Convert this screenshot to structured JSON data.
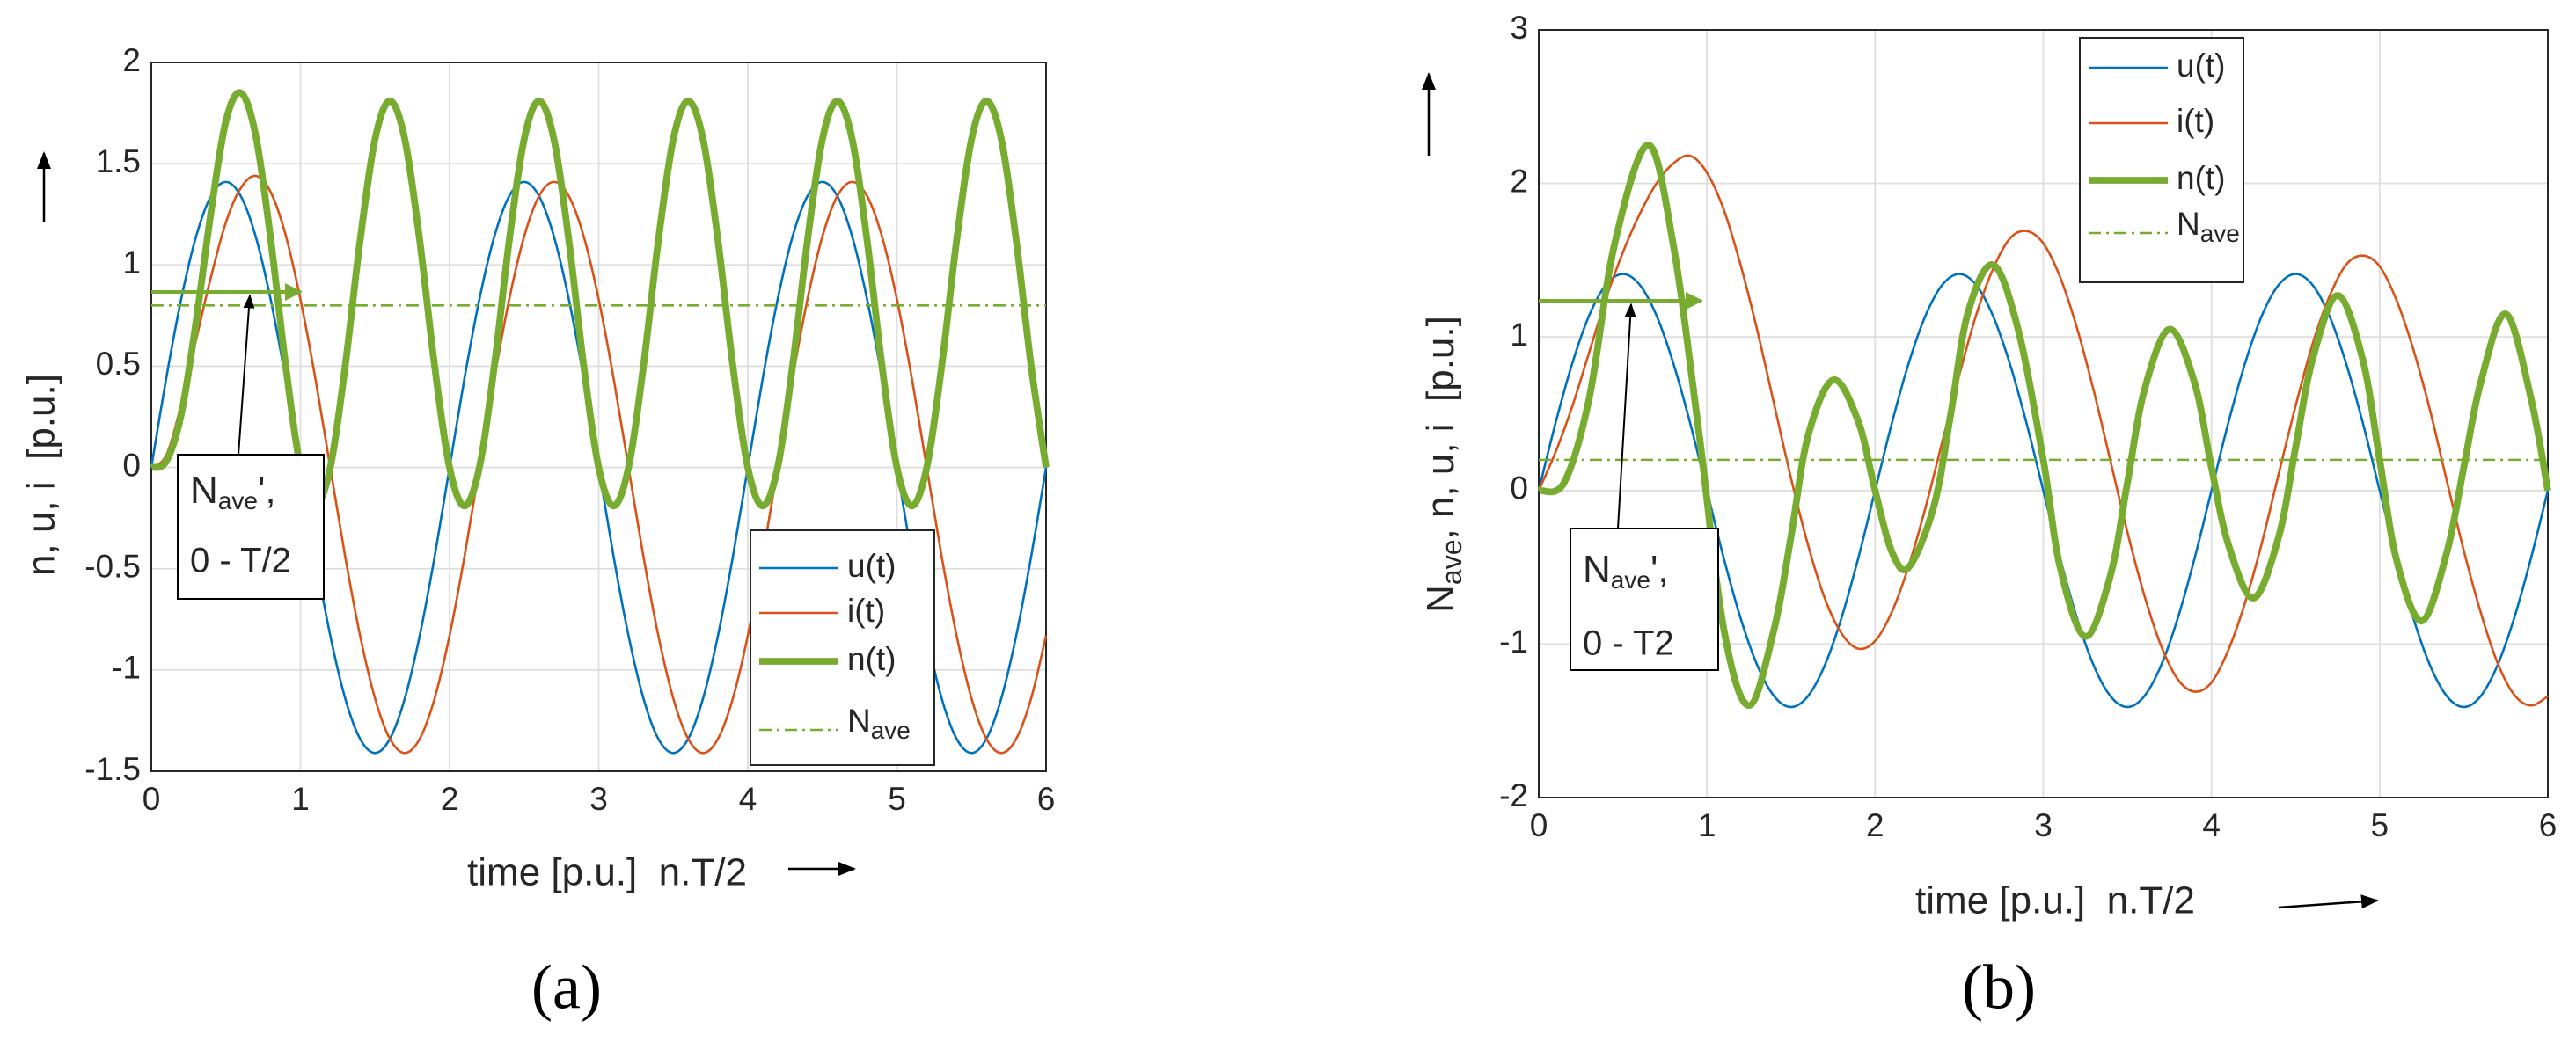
{
  "chart_data": [
    {
      "type": "line",
      "panel_label": "(a)",
      "xlabel": "time [p.u.]  n.T/2",
      "ylabel": "n, u, i  [p.u.]",
      "xlim": [
        0,
        6
      ],
      "xticks": [
        0,
        1,
        2,
        3,
        4,
        5,
        6
      ],
      "ylim": [
        -1.5,
        2
      ],
      "yticks": [
        -1.5,
        -1,
        -0.5,
        0,
        0.5,
        1,
        1.5,
        2
      ],
      "grid": true,
      "legend": "lower right",
      "annotation": {
        "text": "N",
        "sub": "ave",
        "suffix": "',",
        "line2": "0 - T/2"
      },
      "x": [
        0,
        0.1,
        0.2,
        0.3,
        0.4,
        0.5,
        0.6,
        0.7,
        0.8,
        0.9,
        1,
        1.1,
        1.2,
        1.3,
        1.4,
        1.5,
        1.6,
        1.7,
        1.8,
        1.9,
        2,
        2.1,
        2.2,
        2.3,
        2.4,
        2.5,
        2.6,
        2.7,
        2.8,
        2.9,
        3,
        3.1,
        3.2,
        3.3,
        3.4,
        3.5,
        3.6,
        3.7,
        3.8,
        3.9,
        4,
        4.1,
        4.2,
        4.3,
        4.4,
        4.5,
        4.6,
        4.7,
        4.8,
        4.9,
        5,
        5.1,
        5.2,
        5.3,
        5.4,
        5.5,
        5.6,
        5.7,
        5.8,
        5.9,
        6
      ],
      "series": [
        {
          "name": "u(t)",
          "color": "#0072bd",
          "linewidth": 1,
          "linestyle": "solid",
          "values": [
            0,
            0.44,
            0.83,
            1.14,
            1.34,
            1.41,
            1.34,
            1.14,
            0.83,
            0.44,
            0,
            -0.44,
            -0.83,
            -1.14,
            -1.34,
            -1.41,
            -1.34,
            -1.14,
            -0.83,
            -0.44,
            0,
            0.44,
            0.83,
            1.14,
            1.34,
            1.41,
            1.34,
            1.14,
            0.83,
            0.44,
            0,
            -0.44,
            -0.83,
            -1.14,
            -1.34,
            -1.41,
            -1.34,
            -1.14,
            -0.83,
            -0.44,
            0,
            0.44,
            0.83,
            1.14,
            1.34,
            1.41,
            1.34,
            1.14,
            0.83,
            0.44,
            0,
            -0.44,
            -0.83,
            -1.14,
            -1.34,
            -1.41,
            -1.34,
            -1.14,
            -0.83,
            -0.44,
            0
          ]
        },
        {
          "name": "i(t)",
          "color": "#d95319",
          "linewidth": 1,
          "linestyle": "solid",
          "values": [
            0,
            0.06,
            0.31,
            0.63,
            0.94,
            1.21,
            1.38,
            1.44,
            1.36,
            1.15,
            0.83,
            0.44,
            0,
            -0.44,
            -0.83,
            -1.14,
            -1.34,
            -1.41,
            -1.34,
            -1.14,
            -0.83,
            -0.44,
            0,
            0.44,
            0.83,
            1.14,
            1.34,
            1.41,
            1.34,
            1.14,
            0.83,
            0.44,
            0,
            -0.44,
            -0.83,
            -1.14,
            -1.34,
            -1.41,
            -1.34,
            -1.14,
            -0.83,
            -0.44,
            0,
            0.44,
            0.83,
            1.14,
            1.34,
            1.41,
            1.34,
            1.14,
            0.83,
            0.44,
            0,
            -0.44,
            -0.83,
            -1.14,
            -1.34,
            -1.41,
            -1.34,
            -1.14,
            -0.83
          ]
        },
        {
          "name": "n(t)",
          "color": "#77ac30",
          "linewidth": 3,
          "linestyle": "solid",
          "values": [
            0,
            0.03,
            0.26,
            0.72,
            1.26,
            1.71,
            1.85,
            1.64,
            1.13,
            0.51,
            0,
            -0.19,
            0,
            0.5,
            1.12,
            1.62,
            1.81,
            1.62,
            1.12,
            0.5,
            0,
            -0.19,
            0,
            0.5,
            1.12,
            1.62,
            1.81,
            1.62,
            1.12,
            0.5,
            0,
            -0.19,
            0,
            0.5,
            1.12,
            1.62,
            1.81,
            1.62,
            1.12,
            0.5,
            0,
            -0.19,
            0,
            0.5,
            1.12,
            1.62,
            1.81,
            1.62,
            1.12,
            0.5,
            0,
            -0.19,
            0,
            0.5,
            1.12,
            1.62,
            1.81,
            1.62,
            1.12,
            0.5,
            0
          ]
        },
        {
          "name": "N",
          "name_sub": "ave",
          "color": "#77ac30",
          "linewidth": 1,
          "linestyle": "dashdot",
          "x": [
            0,
            6
          ],
          "values": [
            0.8,
            0.8
          ]
        }
      ]
    },
    {
      "type": "line",
      "panel_label": "(b)",
      "xlabel": "time [p.u.]  n.T/2",
      "ylabel": {
        "text": "N",
        "sub": "ave",
        "suffix": ", n, u, i  [p.u.]"
      },
      "xlim": [
        0,
        6
      ],
      "xticks": [
        0,
        1,
        2,
        3,
        4,
        5,
        6
      ],
      "ylim": [
        -2,
        3
      ],
      "yticks": [
        -2,
        -1,
        0,
        1,
        2,
        3
      ],
      "grid": true,
      "legend": "upper center",
      "annotation": {
        "text": "N",
        "sub": "ave",
        "suffix": "',",
        "line2": "0 - T2"
      },
      "x": [
        0,
        0.1,
        0.2,
        0.3,
        0.4,
        0.5,
        0.6,
        0.7,
        0.8,
        0.9,
        1,
        1.1,
        1.2,
        1.3,
        1.4,
        1.5,
        1.6,
        1.7,
        1.8,
        1.9,
        2,
        2.1,
        2.2,
        2.3,
        2.4,
        2.5,
        2.6,
        2.7,
        2.8,
        2.9,
        3,
        3.1,
        3.2,
        3.3,
        3.4,
        3.5,
        3.6,
        3.7,
        3.8,
        3.9,
        4,
        4.1,
        4.2,
        4.3,
        4.4,
        4.5,
        4.6,
        4.7,
        4.8,
        4.9,
        5,
        5.1,
        5.2,
        5.3,
        5.4,
        5.5,
        5.6,
        5.7,
        5.8,
        5.9,
        6
      ],
      "series": [
        {
          "name": "u(t)",
          "color": "#0072bd",
          "linewidth": 1,
          "linestyle": "solid",
          "values": [
            0,
            0.44,
            0.83,
            1.14,
            1.34,
            1.41,
            1.34,
            1.14,
            0.83,
            0.44,
            0,
            -0.44,
            -0.83,
            -1.14,
            -1.34,
            -1.41,
            -1.34,
            -1.14,
            -0.83,
            -0.44,
            0,
            0.44,
            0.83,
            1.14,
            1.34,
            1.41,
            1.34,
            1.14,
            0.83,
            0.44,
            0,
            -0.44,
            -0.83,
            -1.14,
            -1.34,
            -1.41,
            -1.34,
            -1.14,
            -0.83,
            -0.44,
            0,
            0.44,
            0.83,
            1.14,
            1.34,
            1.41,
            1.34,
            1.14,
            0.83,
            0.44,
            0,
            -0.44,
            -0.83,
            -1.14,
            -1.34,
            -1.41,
            -1.34,
            -1.14,
            -0.83,
            -0.44,
            0
          ]
        },
        {
          "name": "i(t)",
          "color": "#d95319",
          "linewidth": 1,
          "linestyle": "solid",
          "values": [
            0,
            0.25,
            0.55,
            0.9,
            1.25,
            1.55,
            1.8,
            2.0,
            2.13,
            2.18,
            2.07,
            1.83,
            1.47,
            1.04,
            0.56,
            0.08,
            -0.35,
            -0.7,
            -0.93,
            -1.03,
            -0.98,
            -0.79,
            -0.49,
            -0.11,
            0.32,
            0.75,
            1.14,
            1.44,
            1.64,
            1.69,
            1.61,
            1.39,
            1.06,
            0.65,
            0.19,
            -0.27,
            -0.68,
            -1.01,
            -1.23,
            -1.31,
            -1.25,
            -1.04,
            -0.73,
            -0.34,
            0.11,
            0.55,
            0.95,
            1.26,
            1.47,
            1.53,
            1.46,
            1.24,
            0.92,
            0.52,
            0.06,
            -0.39,
            -0.79,
            -1.12,
            -1.33,
            -1.4,
            -1.34
          ]
        },
        {
          "name": "n(t)",
          "color": "#77ac30",
          "linewidth": 3,
          "linestyle": "solid",
          "x": [
            0,
            0.15,
            0.3,
            0.45,
            0.65,
            0.8,
            0.95,
            1.1,
            1.25,
            1.4,
            1.5,
            1.6,
            1.75,
            1.9,
            2.0,
            2.1,
            2.2,
            2.35,
            2.45,
            2.55,
            2.7,
            2.85,
            3.0,
            3.1,
            3.25,
            3.4,
            3.5,
            3.6,
            3.75,
            3.9,
            4.0,
            4.1,
            4.25,
            4.4,
            4.5,
            4.6,
            4.75,
            4.9,
            5.0,
            5.1,
            5.25,
            5.4,
            5.5,
            5.6,
            5.75,
            5.9,
            6.0
          ],
          "values": [
            0,
            0.05,
            0.6,
            1.6,
            2.25,
            1.6,
            0.4,
            -0.9,
            -1.4,
            -0.9,
            -0.3,
            0.35,
            0.72,
            0.45,
            0,
            -0.4,
            -0.5,
            -0.1,
            0.5,
            1.15,
            1.47,
            1.05,
            0.2,
            -0.5,
            -0.95,
            -0.55,
            0.05,
            0.65,
            1.05,
            0.7,
            0.15,
            -0.35,
            -0.7,
            -0.3,
            0.28,
            0.85,
            1.27,
            0.85,
            0.2,
            -0.45,
            -0.85,
            -0.4,
            0.15,
            0.7,
            1.15,
            0.6,
            0
          ]
        },
        {
          "name": "N",
          "name_sub": "ave",
          "color": "#77ac30",
          "linewidth": 1,
          "linestyle": "dashdot",
          "x": [
            0,
            6
          ],
          "values": [
            0.2,
            0.2
          ]
        }
      ]
    }
  ]
}
